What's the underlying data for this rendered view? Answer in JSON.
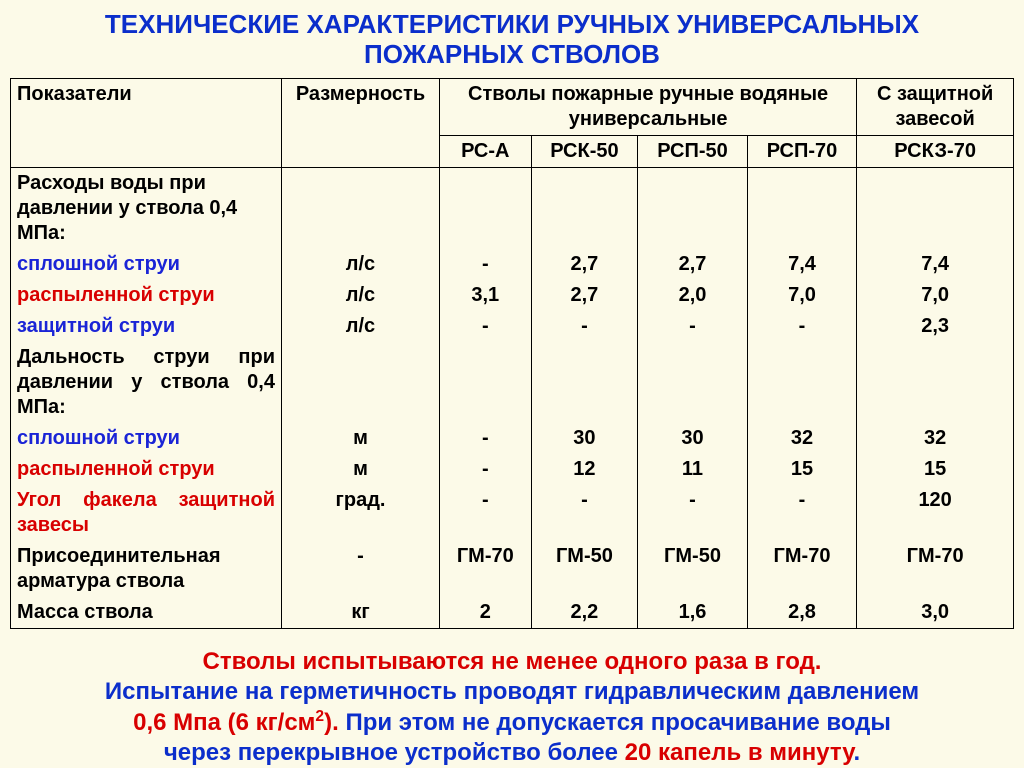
{
  "title_l1": "ТЕХНИЧЕСКИЕ ХАРАКТЕРИСТИКИ РУЧНЫХ УНИВЕРСАЛЬНЫХ",
  "title_l2": "ПОЖАРНЫХ СТВОЛОВ",
  "header": {
    "indicators": "Показатели",
    "dimension": "Размерность",
    "group_main": "Стволы пожарные ручные водяные универсальные",
    "group_shield": "С защитной завесой",
    "models": [
      "РС-А",
      "РСК-50",
      "РСП-50",
      "РСП-70",
      "РСКЗ-70"
    ]
  },
  "rows": [
    {
      "label": "Расходы воды при давлении у ствола 0,4 МПа:",
      "color": "black",
      "dim": "",
      "v": [
        "",
        "",
        "",
        "",
        ""
      ]
    },
    {
      "label": "сплошной струи",
      "color": "blue",
      "dim": "л/с",
      "v": [
        "-",
        "2,7",
        "2,7",
        "7,4",
        "7,4"
      ]
    },
    {
      "label": "распыленной струи",
      "color": "red",
      "dim": "л/с",
      "v": [
        "3,1",
        "2,7",
        "2,0",
        "7,0",
        "7,0"
      ]
    },
    {
      "label": "защитной струи",
      "color": "blue",
      "dim": "л/с",
      "v": [
        "-",
        "-",
        "-",
        "-",
        "2,3"
      ]
    },
    {
      "label": "Дальность струи при давлении у ствола 0,4 МПа:",
      "color": "black",
      "dim": "",
      "v": [
        "",
        "",
        "",
        "",
        ""
      ],
      "justify": true
    },
    {
      "label": "сплошной струи",
      "color": "blue",
      "dim": "м",
      "v": [
        "-",
        "30",
        "30",
        "32",
        "32"
      ]
    },
    {
      "label": "распыленной струи",
      "color": "red",
      "dim": "м",
      "v": [
        "-",
        "12",
        "11",
        "15",
        "15"
      ]
    },
    {
      "label": "Угол факела защитной завесы",
      "color": "red",
      "dim": "град.",
      "v": [
        "-",
        "-",
        "-",
        "-",
        "120"
      ],
      "justify": true
    },
    {
      "label": "Присоединительная арматура ствола",
      "color": "black",
      "dim": "-",
      "v": [
        "ГМ-70",
        "ГМ-50",
        "ГМ-50",
        "ГМ-70",
        "ГМ-70"
      ]
    },
    {
      "label": "Масса ствола",
      "color": "black",
      "dim": "кг",
      "v": [
        "2",
        "2,2",
        "1,6",
        "2,8",
        "3,0"
      ]
    }
  ],
  "note": {
    "p1a": "Стволы испытываются не менее одного раза в год.",
    "p2a": "Испытание на герметичность проводят гидравлическим давлением",
    "p3a": "0,6 Мпа (6 кг/см",
    "p3b": "). ",
    "p3c": "При этом не допускается просачивание воды",
    "p4a": "через перекрывное устройство более ",
    "p4b": "20 капель в минуту",
    "p4c": "."
  },
  "colors": {
    "blue": "#1a24d6",
    "red": "#d80000",
    "black": "#000000",
    "title": "#0b2ecb",
    "bg": "#fcfae8"
  }
}
